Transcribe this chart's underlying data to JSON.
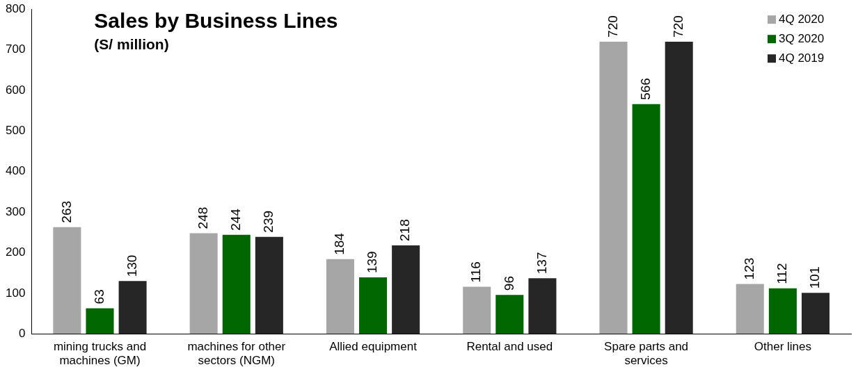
{
  "chart_data": {
    "type": "bar",
    "title": "Sales by Business Lines",
    "subtitle": "(S/ million)",
    "categories": [
      "mining trucks and machines (GM)",
      "machines for other sectors (NGM)",
      "Allied equipment",
      "Rental and used",
      "Spare parts and services",
      "Other lines"
    ],
    "series": [
      {
        "name": "4Q 2020",
        "color": "#a6a6a6",
        "values": [
          263,
          248,
          184,
          116,
          720,
          123
        ]
      },
      {
        "name": "3Q 2020",
        "color": "#006600",
        "values": [
          63,
          244,
          139,
          96,
          566,
          112
        ]
      },
      {
        "name": "4Q 2019",
        "color": "#262626",
        "values": [
          130,
          239,
          218,
          137,
          720,
          101
        ]
      }
    ],
    "ylim": [
      0,
      800
    ],
    "yticks": [
      0,
      100,
      200,
      300,
      400,
      500,
      600,
      700,
      800
    ],
    "grid": false,
    "legend": "top right",
    "data_labels": true
  }
}
